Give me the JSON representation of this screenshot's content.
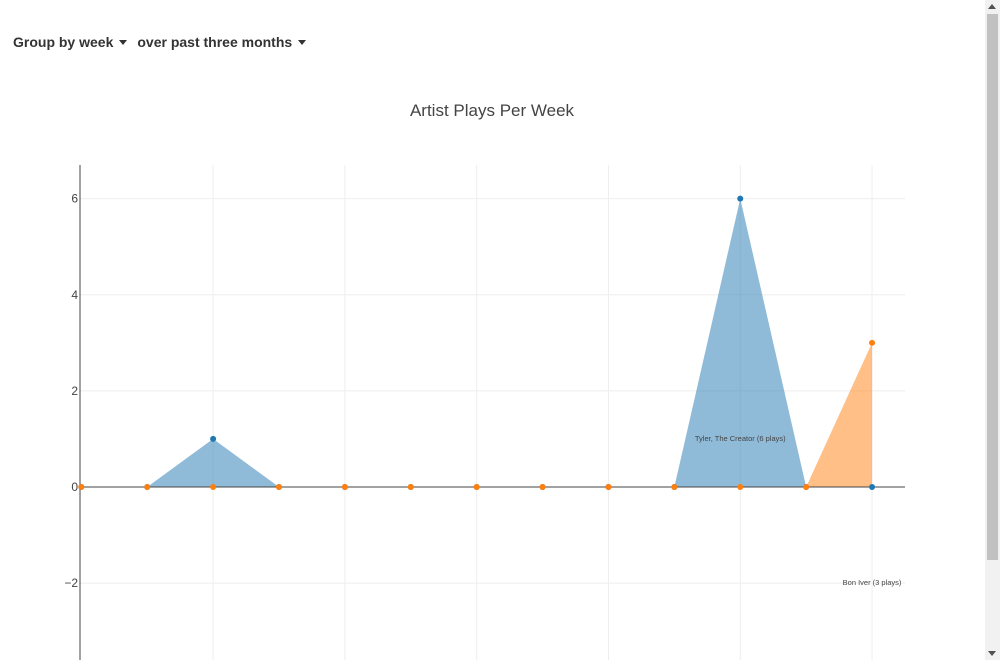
{
  "controls": {
    "group_by_label": "Group by week",
    "range_label": "over past three months"
  },
  "chart_data": {
    "type": "area",
    "title": "Artist Plays Per Week",
    "xlabel": "",
    "ylabel": "",
    "xlim": [
      -0.02,
      12.5
    ],
    "ylim": [
      -3.6,
      6.7
    ],
    "ytick_values": [
      -2,
      0,
      2,
      4,
      6
    ],
    "ytick_labels": [
      "−2",
      "0",
      "2",
      "4",
      "6"
    ],
    "grid": true,
    "x": [
      0,
      1,
      2,
      3,
      4,
      5,
      6,
      7,
      8,
      9,
      10,
      11,
      12
    ],
    "series": [
      {
        "key": "tyler",
        "color": "#1f77b4",
        "fill": "#1f77b4",
        "values": [
          0,
          0,
          1,
          0,
          0,
          0,
          0,
          0,
          0,
          0,
          6,
          0,
          0
        ]
      },
      {
        "key": "bonIver",
        "color": "#ff7f0e",
        "fill": "#ff7f0e",
        "values": [
          0,
          0,
          0,
          0,
          0,
          0,
          0,
          0,
          0,
          0,
          0,
          0,
          3
        ]
      }
    ],
    "annotations": [
      {
        "text": "Tyler, The Creator (6 plays)",
        "x": 10,
        "y": 1
      },
      {
        "text": "Bon Iver (3 plays)",
        "x": 12,
        "y": -2
      }
    ]
  }
}
